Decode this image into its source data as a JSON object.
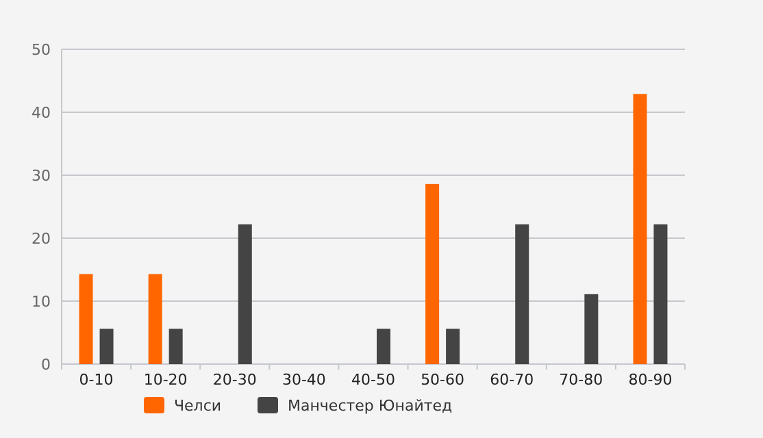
{
  "chart_data": {
    "type": "bar",
    "categories": [
      "0-10",
      "10-20",
      "20-30",
      "30-40",
      "40-50",
      "50-60",
      "60-70",
      "70-80",
      "80-90"
    ],
    "series": [
      {
        "name": "Челси",
        "color": "#ff6600",
        "values": [
          14.3,
          14.3,
          0,
          0,
          0,
          28.6,
          0,
          0,
          42.9
        ]
      },
      {
        "name": "Манчестер Юнайтед",
        "color": "#444444",
        "values": [
          5.6,
          5.6,
          22.2,
          0,
          5.6,
          5.6,
          22.2,
          11.1,
          22.2
        ]
      }
    ],
    "ylim": [
      0,
      50
    ],
    "yticks": [
      0,
      10,
      20,
      30,
      40,
      50
    ],
    "grid": "y",
    "legend": "bottom"
  }
}
